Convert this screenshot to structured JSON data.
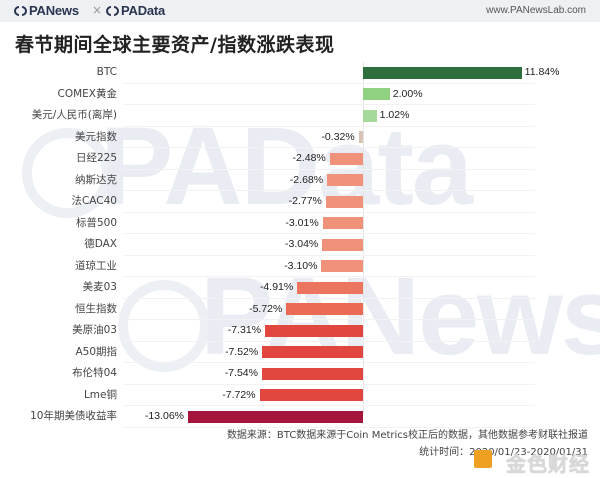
{
  "header": {
    "brand_left": "PANews",
    "separator": "×",
    "brand_right": "PAData",
    "site": "www.PANewsLab.com"
  },
  "title": "春节期间全球主要资产/指数涨跌表现",
  "watermarks": {
    "upper": "PAData",
    "lower": "PANews",
    "corner": "金色财经"
  },
  "footer": {
    "source": "数据来源：BTC数据来源于Coin Metrics校正后的数据，其他数据参考财联社报道",
    "period": "统计时间：2020/01/23-2020/01/31"
  },
  "colors": {
    "btc": "#2e6f3e",
    "positive_light": "#8fd081",
    "positive_lighter": "#a7d89b",
    "near_zero": "#d9c3b5",
    "neg_light": "#f0917a",
    "neg_mid": "#ea6a55",
    "neg_strong": "#e2473f",
    "neg_extreme": "#a5143a"
  },
  "chart_data": {
    "type": "bar",
    "orientation": "horizontal",
    "title": "春节期间全球主要资产/指数涨跌表现",
    "xlabel": "",
    "ylabel": "",
    "unit": "%",
    "grid": true,
    "legend": null,
    "categories": [
      "BTC",
      "COMEX黄金",
      "美元/人民币(离岸)",
      "美元指数",
      "日经225",
      "纳斯达克",
      "法CAC40",
      "标普500",
      "德DAX",
      "道琼工业",
      "美麦03",
      "恒生指数",
      "美原油03",
      "A50期指",
      "布伦特04",
      "Lme铜",
      "10年期美债收益率"
    ],
    "values": [
      11.84,
      2.0,
      1.02,
      -0.32,
      -2.48,
      -2.68,
      -2.77,
      -3.01,
      -3.04,
      -3.1,
      -4.91,
      -5.72,
      -7.31,
      -7.52,
      -7.54,
      -7.72,
      -13.06
    ],
    "labels": [
      "11.84%",
      "2.00%",
      "1.02%",
      "-0.32%",
      "-2.48%",
      "-2.68%",
      "-2.77%",
      "-3.01%",
      "-3.04%",
      "-3.10%",
      "-4.91%",
      "-5.72%",
      "-7.31%",
      "-7.52%",
      "-7.54%",
      "-7.72%",
      "-13.06%"
    ],
    "bar_colors": [
      "#2e6f3e",
      "#8fd081",
      "#a7d89b",
      "#d9c3b5",
      "#f0917a",
      "#f0917a",
      "#f0917a",
      "#f0917a",
      "#f0917a",
      "#f0917a",
      "#ec7560",
      "#ea6a55",
      "#e2473f",
      "#e2473f",
      "#e2473f",
      "#e2473f",
      "#a5143a"
    ],
    "xlim": [
      -13.5,
      12.5
    ],
    "source": "数据来源：BTC数据来源于Coin Metrics校正后的数据，其他数据参考财联社报道",
    "period": "统计时间：2020/01/23-2020/01/31"
  }
}
